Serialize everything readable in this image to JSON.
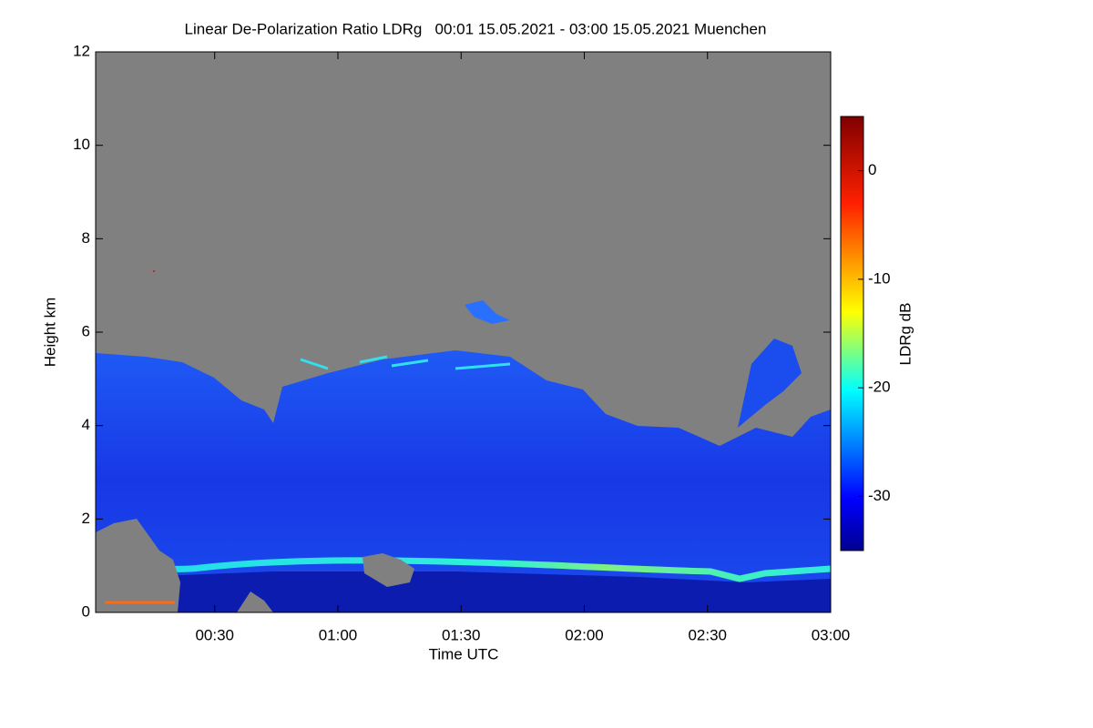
{
  "chart_data": {
    "type": "heatmap",
    "title": "Linear De-Polarization Ratio LDRg   00:01 15.05.2021 - 03:00 15.05.2021 Muenchen",
    "xlabel": "Time UTC",
    "ylabel": "Height km",
    "xlim": [
      1,
      180
    ],
    "xticks": [
      {
        "value": 30,
        "label": "00:30"
      },
      {
        "value": 60,
        "label": "01:00"
      },
      {
        "value": 90,
        "label": "01:30"
      },
      {
        "value": 120,
        "label": "02:00"
      },
      {
        "value": 150,
        "label": "02:30"
      },
      {
        "value": 180,
        "label": "03:00"
      }
    ],
    "ylim": [
      0,
      12
    ],
    "yticks": [
      0,
      2,
      4,
      6,
      8,
      10,
      12
    ],
    "colorbar_label": "LDRg dB",
    "clim": [
      -35,
      5
    ],
    "cticks": [
      0,
      -10,
      -20,
      -30
    ]
  }
}
